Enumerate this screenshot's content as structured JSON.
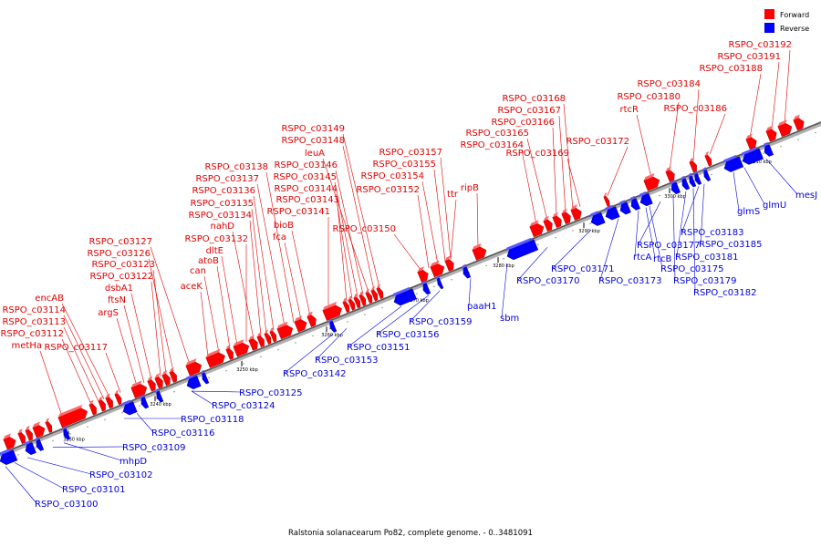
{
  "legend": {
    "forward_label": "Forward",
    "reverse_label": "Reverse",
    "forward_color": "#ff0000",
    "reverse_color": "#0000ff"
  },
  "caption": "Ralstonia solanacearum Po82, complete genome. - 0..3481091",
  "ticks": [
    "3230 kbp",
    "3240 kbp",
    "3250 kbp",
    "3260 kbp",
    "3270 kbp",
    "3280 kbp",
    "3290 kbp",
    "3300 kbp",
    "3310 kbp"
  ],
  "forward_labels": [
    "metHa",
    "RSPO_c03112",
    "RSPO_c03113",
    "RSPO_c03114",
    "encAB",
    "RSPO_c03117",
    "argS",
    "ftsN",
    "dsbA1",
    "RSPO_c03122",
    "RSPO_c03123",
    "RSPO_c03126",
    "RSPO_c03127",
    "aceK",
    "can",
    "atoB",
    "dltE",
    "RSPO_c03132",
    "nahD",
    "RSPO_c03134",
    "RSPO_c03135",
    "RSPO_c03136",
    "RSPO_c03137",
    "RSPO_c03138",
    "fca",
    "bioB",
    "RSPO_c03141",
    "RSPO_c03143",
    "RSPO_c03144",
    "RSPO_c03145",
    "RSPO_c03146",
    "leuA",
    "RSPO_c03148",
    "RSPO_c03149",
    "RSPO_c03150",
    "RSPO_c03152",
    "RSPO_c03154",
    "RSPO_c03155",
    "RSPO_c03157",
    "ttr",
    "ripB",
    "RSPO_c03164",
    "RSPO_c03165",
    "RSPO_c03166",
    "RSPO_c03167",
    "RSPO_c03168",
    "RSPO_c03169",
    "RSPO_c03172",
    "rtcR",
    "RSPO_c03180",
    "RSPO_c03184",
    "RSPO_c03186",
    "RSPO_c03188",
    "RSPO_c03191",
    "RSPO_c03192"
  ],
  "reverse_labels": [
    "RSPO_c03100",
    "RSPO_c03101",
    "RSPO_c03102",
    "mhpD",
    "RSPO_c03109",
    "RSPO_c03116",
    "RSPO_c03118",
    "RSPO_c03124",
    "RSPO_c03125",
    "RSPO_c03142",
    "RSPO_c03153",
    "RSPO_c03151",
    "RSPO_c03156",
    "RSPO_c03159",
    "paaH1",
    "sbm",
    "RSPO_c03170",
    "RSPO_c03171",
    "RSPO_c03173",
    "rtcA",
    "rtcB",
    "RSPO_c03175",
    "RSPO_c03177",
    "RSPO_c03179",
    "RSPO_c03181",
    "RSPO_c03182",
    "RSPO_c03183",
    "RSPO_c03185",
    "glmS",
    "glmU",
    "mesJ"
  ]
}
